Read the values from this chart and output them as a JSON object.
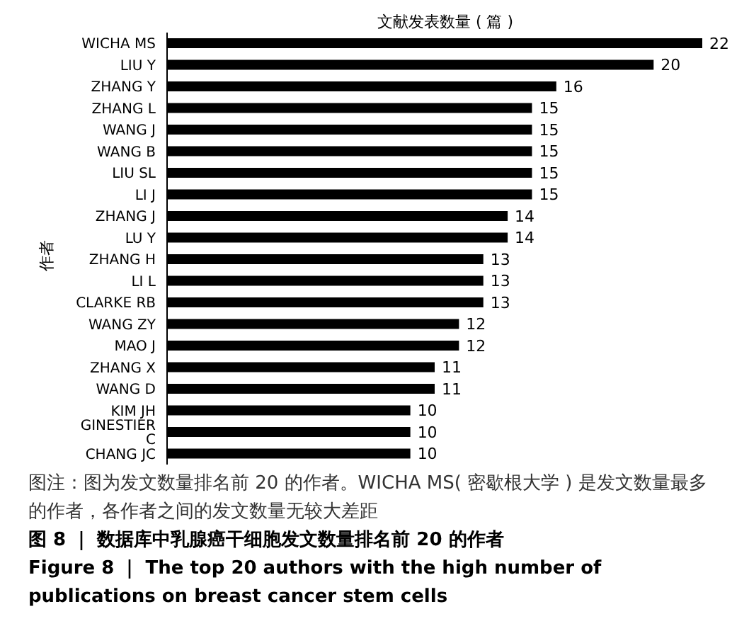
{
  "chart_data": {
    "type": "bar",
    "orientation": "horizontal",
    "xlabel": "文献发表数量 ( 篇 )",
    "ylabel": "作者",
    "categories": [
      "WICHA MS",
      "LIU Y",
      "ZHANG Y",
      "ZHANG L",
      "WANG J",
      "WANG B",
      "LIU SL",
      "LI J",
      "ZHANG J",
      "LU Y",
      "ZHANG H",
      "LI L",
      "CLARKE RB",
      "WANG ZY",
      "MAO J",
      "ZHANG X",
      "WANG D",
      "KIM JH",
      "GINESTIER C",
      "CHANG JC"
    ],
    "values": [
      22,
      20,
      16,
      15,
      15,
      15,
      15,
      15,
      14,
      14,
      13,
      13,
      13,
      12,
      12,
      11,
      11,
      10,
      10,
      10
    ],
    "color": "#000000",
    "data_labels": true,
    "grid": false,
    "legend": false,
    "tick_labels": "y",
    "annotations": [
      "图注：图为发文数量排名前 20 的作者。WICHA MS( 密歇根大学 ) 是发文数量最多的作者，各作者之间的发文数量无较大差距",
      "图 8 ｜ 数据库中乳腺癌干细胞发文数量排名前 20 的作者",
      "Figure 8 ｜ The top 20 authors with the high number of publications on breast cancer stem cells"
    ]
  }
}
